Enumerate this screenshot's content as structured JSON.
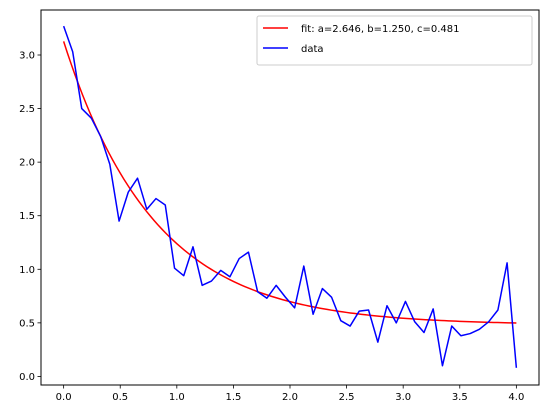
{
  "chart_data": {
    "type": "line",
    "title": "",
    "xlabel": "",
    "ylabel": "",
    "xlim": [
      -0.2,
      4.2
    ],
    "ylim": [
      -0.08,
      3.42
    ],
    "grid": false,
    "legend_position": "top-right",
    "x_ticks": [
      {
        "value": 0.0,
        "label": "0.0"
      },
      {
        "value": 0.5,
        "label": "0.5"
      },
      {
        "value": 1.0,
        "label": "1.0"
      },
      {
        "value": 1.5,
        "label": "1.5"
      },
      {
        "value": 2.0,
        "label": "2.0"
      },
      {
        "value": 2.5,
        "label": "2.5"
      },
      {
        "value": 3.0,
        "label": "3.0"
      },
      {
        "value": 3.5,
        "label": "3.5"
      },
      {
        "value": 4.0,
        "label": "4.0"
      }
    ],
    "y_ticks": [
      {
        "value": 0.0,
        "label": "0.0"
      },
      {
        "value": 0.5,
        "label": "0.5"
      },
      {
        "value": 1.0,
        "label": "1.0"
      },
      {
        "value": 1.5,
        "label": "1.5"
      },
      {
        "value": 2.0,
        "label": "2.0"
      },
      {
        "value": 2.5,
        "label": "2.5"
      },
      {
        "value": 3.0,
        "label": "3.0"
      }
    ],
    "series": [
      {
        "name": "fit: a=2.646, b=1.250, c=0.481",
        "color": "#ff0000",
        "kind": "fit",
        "params": {
          "a": 2.646,
          "b": 1.25,
          "c": 0.481
        },
        "x_range": [
          0,
          4
        ]
      },
      {
        "name": "data",
        "color": "#0000ff",
        "kind": "data",
        "x": [
          0.0,
          0.08,
          0.16,
          0.245,
          0.327,
          0.408,
          0.49,
          0.571,
          0.653,
          0.735,
          0.816,
          0.898,
          0.98,
          1.061,
          1.143,
          1.224,
          1.306,
          1.388,
          1.469,
          1.551,
          1.633,
          1.714,
          1.796,
          1.878,
          1.959,
          2.041,
          2.122,
          2.204,
          2.286,
          2.367,
          2.449,
          2.531,
          2.612,
          2.694,
          2.776,
          2.857,
          2.939,
          3.02,
          3.102,
          3.184,
          3.265,
          3.347,
          3.429,
          3.51,
          3.592,
          3.673,
          3.755,
          3.837,
          3.918,
          4.0
        ],
        "y": [
          3.27,
          3.03,
          2.5,
          2.41,
          2.24,
          1.98,
          1.45,
          1.72,
          1.85,
          1.56,
          1.66,
          1.6,
          1.01,
          0.94,
          1.21,
          0.85,
          0.89,
          0.99,
          0.93,
          1.1,
          1.16,
          0.79,
          0.73,
          0.85,
          0.74,
          0.64,
          1.03,
          0.58,
          0.82,
          0.74,
          0.52,
          0.47,
          0.61,
          0.62,
          0.32,
          0.66,
          0.5,
          0.7,
          0.51,
          0.41,
          0.63,
          0.1,
          0.47,
          0.38,
          0.4,
          0.44,
          0.51,
          0.62,
          1.06,
          0.08
        ]
      }
    ]
  }
}
